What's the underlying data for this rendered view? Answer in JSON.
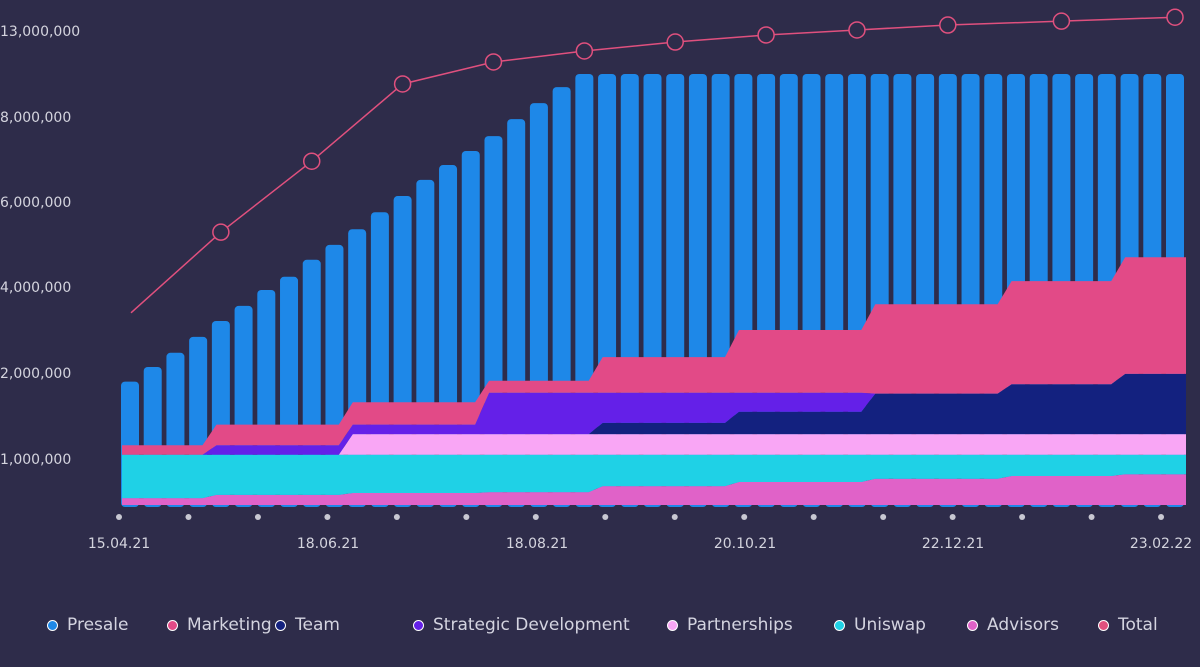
{
  "chart_data": {
    "type": "bar",
    "title": "",
    "xlabel": "",
    "ylabel": "",
    "y_ticks": [
      {
        "value": 1000000,
        "label": "1,000,000"
      },
      {
        "value": 2000000,
        "label": "2,000,000"
      },
      {
        "value": 4000000,
        "label": "4,000,000"
      },
      {
        "value": 6000000,
        "label": "6,000,000"
      },
      {
        "value": 8000000,
        "label": "8,000,000"
      },
      {
        "value": 13000000,
        "label": "13,000,000"
      }
    ],
    "x_tick_labels": [
      "15.04.21",
      "18.06.21",
      "18.08.21",
      "20.10.21",
      "22.12.21",
      "23.02.22"
    ],
    "x_tick_dot_count": 16,
    "bar_count": 47,
    "presale": {
      "name": "Presale",
      "values": [
        1900000,
        2140000,
        2470000,
        2840000,
        3210000,
        3560000,
        3930000,
        4240000,
        4640000,
        4990000,
        5360000,
        5760000,
        6140000,
        6520000,
        6870000,
        7200000,
        7550000,
        7950000,
        8810000,
        9740000,
        10500000,
        10500000,
        10500000,
        10500000,
        10500000,
        10500000,
        10500000,
        10500000,
        10500000,
        10500000,
        10500000,
        10500000,
        10500000,
        10500000,
        10500000,
        10500000,
        10500000,
        10500000,
        10500000,
        10500000,
        10500000,
        10500000,
        10500000,
        10500000,
        10500000,
        10500000,
        10500000
      ]
    },
    "area_block_start_bars": [
      0,
      4,
      10,
      16,
      21,
      27,
      33,
      39,
      44
    ],
    "areas": [
      {
        "name": "Advisors",
        "values": [
          150000,
          220000,
          260000,
          280000,
          410000,
          500000,
          570000,
          630000,
          670000
        ]
      },
      {
        "name": "Uniswap",
        "values": [
          900000,
          830000,
          790000,
          770000,
          640000,
          550000,
          480000,
          420000,
          380000
        ]
      },
      {
        "name": "Partnerships",
        "values": [
          0,
          0,
          240000,
          240000,
          240000,
          240000,
          240000,
          240000,
          240000
        ]
      },
      {
        "name": "Team",
        "values": [
          0,
          0,
          0,
          0,
          130000,
          260000,
          470000,
          580000,
          700000
        ]
      },
      {
        "name": "Strategic Development",
        "values": [
          0,
          110000,
          110000,
          480000,
          350000,
          220000,
          0,
          0,
          0
        ]
      },
      {
        "name": "Marketing",
        "values": [
          110000,
          240000,
          260000,
          140000,
          600000,
          1230000,
          1840000,
          2270000,
          2710000
        ]
      }
    ],
    "total": {
      "name": "Total",
      "point_bars": [
        0,
        4,
        8,
        12,
        16,
        20,
        24,
        28,
        32,
        36,
        41,
        46
      ],
      "values": [
        3400000,
        5290000,
        6960000,
        9920000,
        11200000,
        11840000,
        12360000,
        12770000,
        13060000,
        13350000,
        13580000,
        13810000
      ]
    },
    "legend": [
      "Presale",
      "Marketing",
      "Team",
      "Strategic Development",
      "Partnerships",
      "Uniswap",
      "Advisors",
      "Total"
    ],
    "legend_placement": "bottom",
    "colors": {
      "Presale": "#1e88e8",
      "Marketing": "#e24a87",
      "Team": "#13217f",
      "Strategic Development": "#6420e8",
      "Partnerships": "#f9a6f5",
      "Uniswap": "#1fd1e6",
      "Advisors": "#e062c8",
      "Total": "#e0507e"
    }
  }
}
